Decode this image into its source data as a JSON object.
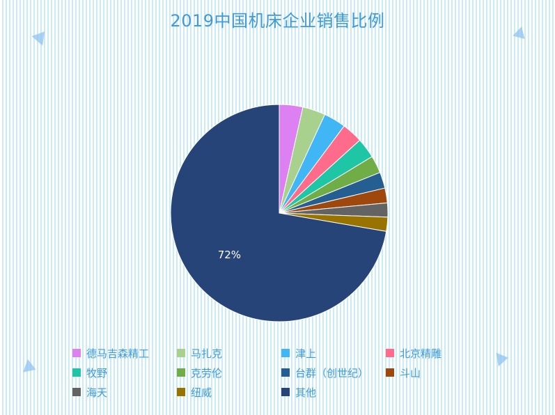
{
  "chart_data": {
    "type": "pie",
    "title": "2019中国机床企业销售比例",
    "categories": [
      "德马吉森精工",
      "马扎克",
      "津上",
      "北京精雕",
      "牧野",
      "克劳伦",
      "台群（创世纪）",
      "斗山",
      "海天",
      "纽威",
      "其他"
    ],
    "values": [
      3.5,
      3.4,
      3.3,
      3.1,
      3.0,
      2.6,
      2.4,
      2.2,
      2.1,
      2.1,
      72.3
    ],
    "data_labels": [
      "",
      "",
      "",
      "",
      "",
      "",
      "",
      "",
      "",
      "",
      "72%"
    ],
    "colors": [
      "#dc80f2",
      "#a9d18e",
      "#41b6f4",
      "#ff6b8b",
      "#1fc6a6",
      "#70ad47",
      "#255e91",
      "#9e480e",
      "#636363",
      "#997300",
      "#264478"
    ],
    "legend_position": "bottom",
    "start_angle_deg": 0,
    "direction": "clockwise"
  }
}
